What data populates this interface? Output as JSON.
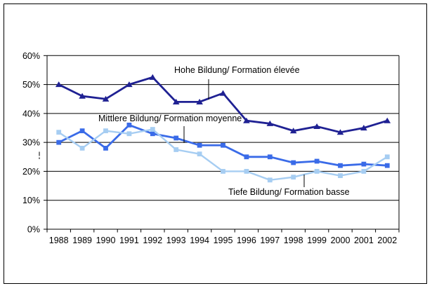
{
  "figure": {
    "background": "#FFFFFF",
    "border_color": "#000000"
  },
  "chart_data": {
    "type": "line",
    "categories": [
      "1988",
      "1989",
      "1990",
      "1991",
      "1992",
      "1993",
      "1994",
      "1995",
      "1996",
      "1997",
      "1998",
      "1999",
      "2000",
      "2001",
      "2002"
    ],
    "ylim": [
      0,
      60
    ],
    "ytick_step": 10,
    "ytick_labels": [
      "60%",
      "50%",
      "40%",
      "30%",
      "20%",
      "10%",
      "0%"
    ],
    "grid": true,
    "legend": "none - series identified by in-chart annotations with leader lines",
    "xlabel": "",
    "ylabel": "",
    "series": [
      {
        "name": "Hohe Bildung/ Formation élevée",
        "marker": "triangle",
        "color": "#1F2193",
        "values": [
          50,
          46,
          45,
          50,
          52.5,
          44,
          44,
          47,
          37.5,
          36.5,
          34,
          35.5,
          33.5,
          35,
          37.5
        ]
      },
      {
        "name": "Mittlere Bildung/ Formation moyenne",
        "marker": "square",
        "color": "#3A6BE8",
        "values": [
          30,
          34,
          28,
          36,
          33,
          31.5,
          29,
          29,
          25,
          25,
          23,
          23.5,
          22,
          22.5,
          22
        ]
      },
      {
        "name": "Tiefe Bildung/ Formation basse",
        "marker": "square",
        "color": "#A6CDF2",
        "values": [
          33.5,
          28,
          34,
          33,
          34.5,
          27.5,
          26,
          20,
          20,
          17,
          18,
          20,
          18.5,
          20,
          25
        ]
      }
    ],
    "annotations": [
      {
        "text": "Hohe Bildung/ Formation élevée",
        "text_x": 248,
        "text_y": 104,
        "leader_x": 297,
        "leader_y1": 113,
        "leader_y2": 142
      },
      {
        "text": "Mittlere Bildung/ Formation moyenne",
        "text_x": 140,
        "text_y": 173,
        "leader_x": 262,
        "leader_y1": 180,
        "leader_y2": 204
      },
      {
        "text": "Tiefe Bildung/ Formation basse",
        "text_x": 325,
        "text_y": 278,
        "leader_x": 433,
        "leader_y1": 249,
        "leader_y2": 267
      }
    ]
  }
}
